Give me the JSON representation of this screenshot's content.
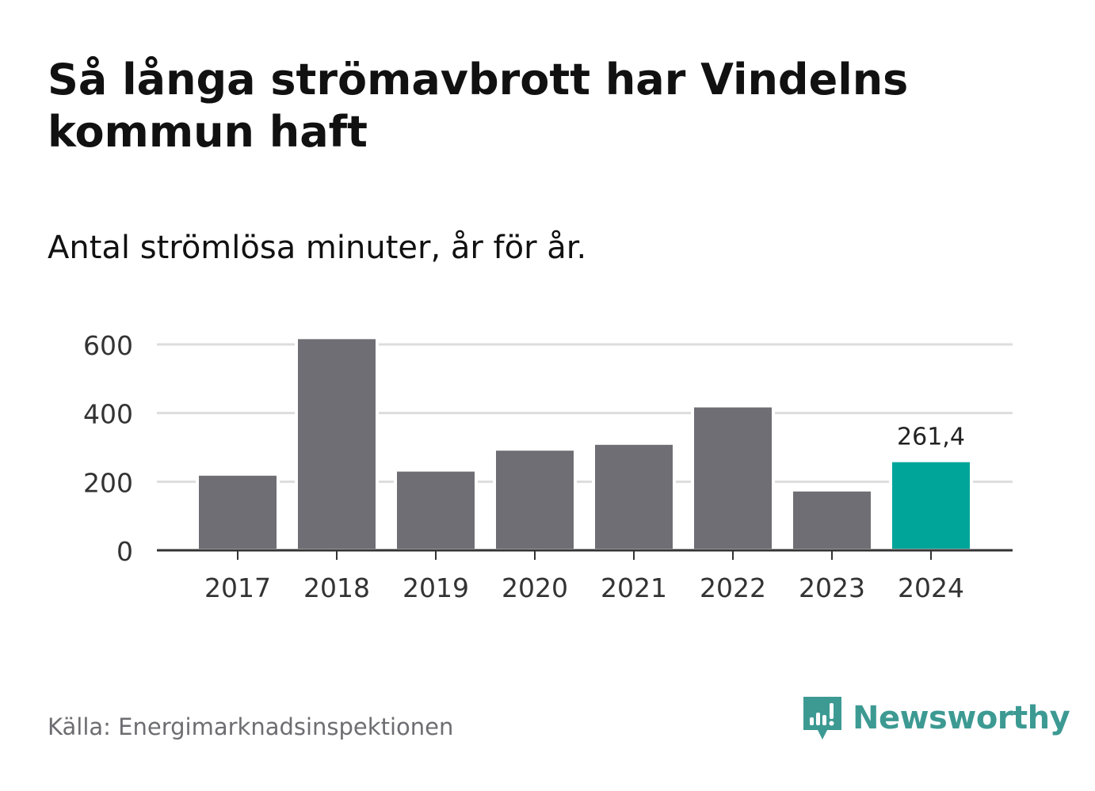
{
  "title": "Så långa strömavbrott har Vindelns kommun haft",
  "subtitle": "Antal strömlösa minuter, år för år.",
  "source": "Källa: Energimarknadsinspektionen",
  "brand": "Newsworthy",
  "colors": {
    "bar": "#6f6e74",
    "highlight": "#00a59a",
    "grid": "#dddddd",
    "axis": "#333333",
    "brand": "#3d9a93"
  },
  "chart_data": {
    "type": "bar",
    "categories": [
      "2017",
      "2018",
      "2019",
      "2020",
      "2021",
      "2022",
      "2023",
      "2024"
    ],
    "values": [
      222,
      620,
      234,
      295,
      312,
      421,
      176,
      261.4
    ],
    "highlight_index": 7,
    "data_labels": [
      {
        "index": 7,
        "text": "261,4"
      }
    ],
    "ylim": [
      0,
      620
    ],
    "yticks": [
      0,
      200,
      400,
      600
    ],
    "ytick_labels": [
      "0",
      "200",
      "400",
      "600"
    ],
    "grid": true
  }
}
